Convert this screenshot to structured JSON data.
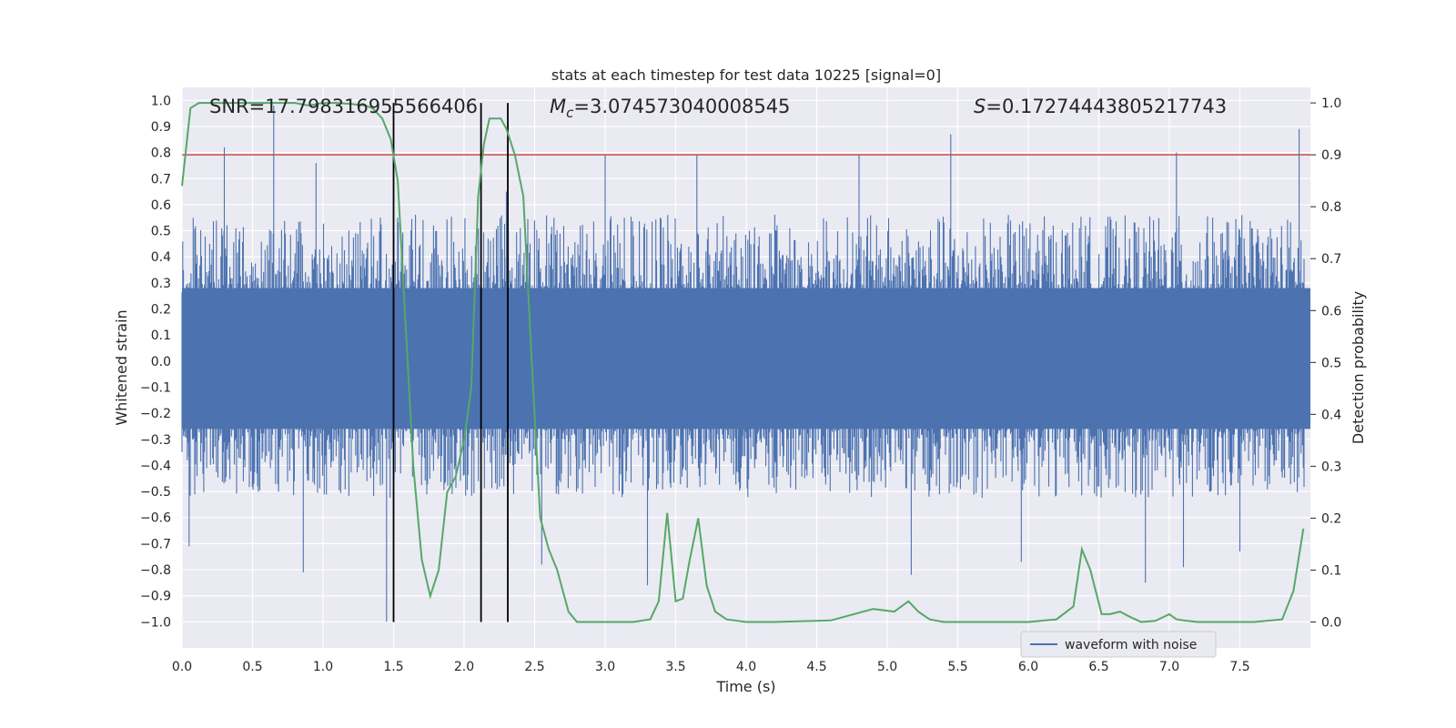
{
  "chart_data": {
    "type": "line",
    "title": "stats at each timestep for test data 10225 [signal=0]",
    "xlabel": "Time (s)",
    "ylabel_left": "Whitened strain",
    "ylabel_right": "Detection probability",
    "xlim": [
      0.0,
      8.0
    ],
    "ylim_left": [
      -1.1,
      1.05
    ],
    "ylim_right": [
      -0.05,
      1.03
    ],
    "x_ticks": [
      "0.0",
      "0.5",
      "1.0",
      "1.5",
      "2.0",
      "2.5",
      "3.0",
      "3.5",
      "4.0",
      "4.5",
      "5.0",
      "5.5",
      "6.0",
      "6.5",
      "7.0",
      "7.5"
    ],
    "y_ticks_left": [
      "1.0",
      "0.9",
      "0.8",
      "0.7",
      "0.6",
      "0.5",
      "0.4",
      "0.3",
      "0.2",
      "0.1",
      "0.0",
      "-0.1",
      "-0.2",
      "-0.3",
      "-0.4",
      "-0.5",
      "-0.6",
      "-0.7",
      "-0.8",
      "-0.9",
      "-1.0"
    ],
    "y_ticks_right": [
      "1.0",
      "0.9",
      "0.8",
      "0.7",
      "0.6",
      "0.5",
      "0.4",
      "0.3",
      "0.2",
      "0.1",
      "0.0"
    ],
    "annotations": {
      "snr": "SNR=17.798316955566406",
      "mc_symbol": "M",
      "mc_subscript": "c",
      "mc_value": "=3.074573040008545",
      "s_symbol": "S",
      "s_value": "=0.17274443805217743"
    },
    "grid": true,
    "legend": {
      "label": "waveform with noise",
      "placement": "lower-right"
    },
    "threshold": {
      "value": 0.9,
      "axis": "right"
    },
    "vlines": [
      1.5,
      2.12,
      2.31
    ],
    "waveform_summary": {
      "name": "waveform with noise",
      "samples": 1500,
      "typical_positive_peak": 0.45,
      "typical_negative_peak": -0.42,
      "spikes": [
        {
          "x": 0.65,
          "y": 0.98
        },
        {
          "x": 0.3,
          "y": 0.82
        },
        {
          "x": 1.45,
          "y": -1.0
        },
        {
          "x": 0.86,
          "y": -0.81
        },
        {
          "x": 2.12,
          "y": -0.87
        },
        {
          "x": 5.45,
          "y": 0.87
        },
        {
          "x": 5.17,
          "y": -0.82
        },
        {
          "x": 7.92,
          "y": 0.89
        },
        {
          "x": 6.83,
          "y": -0.85
        },
        {
          "x": 3.3,
          "y": -0.86
        },
        {
          "x": 3.0,
          "y": 0.79
        },
        {
          "x": 3.65,
          "y": 0.79
        },
        {
          "x": 4.8,
          "y": 0.79
        },
        {
          "x": 7.05,
          "y": 0.8
        },
        {
          "x": 0.95,
          "y": 0.76
        },
        {
          "x": 2.3,
          "y": 0.65
        },
        {
          "x": 2.55,
          "y": -0.78
        },
        {
          "x": 7.5,
          "y": -0.73
        },
        {
          "x": 7.1,
          "y": -0.79
        },
        {
          "x": 5.95,
          "y": -0.77
        },
        {
          "x": 0.05,
          "y": -0.71
        }
      ]
    },
    "series": [
      {
        "name": "detection probability",
        "color": "#55a868",
        "axis": "right",
        "x": [
          0.0,
          0.06,
          0.12,
          0.2,
          0.3,
          0.5,
          0.7,
          0.8,
          0.9,
          1.0,
          1.1,
          1.2,
          1.3,
          1.35,
          1.42,
          1.48,
          1.53,
          1.58,
          1.64,
          1.7,
          1.76,
          1.82,
          1.88,
          1.94,
          2.0,
          2.05,
          2.1,
          2.14,
          2.18,
          2.26,
          2.3,
          2.36,
          2.42,
          2.48,
          2.54,
          2.6,
          2.66,
          2.74,
          2.8,
          3.0,
          3.2,
          3.32,
          3.38,
          3.44,
          3.5,
          3.55,
          3.6,
          3.66,
          3.72,
          3.78,
          3.86,
          4.0,
          4.2,
          4.6,
          4.9,
          5.05,
          5.15,
          5.22,
          5.3,
          5.4,
          5.5,
          6.0,
          6.2,
          6.32,
          6.38,
          6.44,
          6.52,
          6.58,
          6.65,
          6.72,
          6.8,
          6.9,
          7.0,
          7.05,
          7.1,
          7.2,
          7.4,
          7.6,
          7.8,
          7.88,
          7.95
        ],
        "values": [
          0.84,
          0.99,
          1.0,
          1.0,
          1.0,
          1.0,
          1.0,
          1.0,
          0.995,
          1.0,
          1.0,
          0.998,
          0.995,
          0.99,
          0.97,
          0.93,
          0.85,
          0.6,
          0.3,
          0.12,
          0.05,
          0.1,
          0.25,
          0.28,
          0.35,
          0.45,
          0.82,
          0.92,
          0.97,
          0.97,
          0.95,
          0.9,
          0.82,
          0.5,
          0.2,
          0.14,
          0.1,
          0.02,
          0.0,
          0.0,
          0.0,
          0.005,
          0.04,
          0.21,
          0.04,
          0.045,
          0.12,
          0.2,
          0.07,
          0.02,
          0.005,
          0.0,
          0.0,
          0.003,
          0.025,
          0.02,
          0.04,
          0.02,
          0.005,
          0.0,
          0.0,
          0.0,
          0.005,
          0.03,
          0.14,
          0.1,
          0.015,
          0.015,
          0.02,
          0.01,
          0.0,
          0.002,
          0.015,
          0.005,
          0.003,
          0.0,
          0.0,
          0.0,
          0.005,
          0.06,
          0.18
        ]
      }
    ]
  }
}
